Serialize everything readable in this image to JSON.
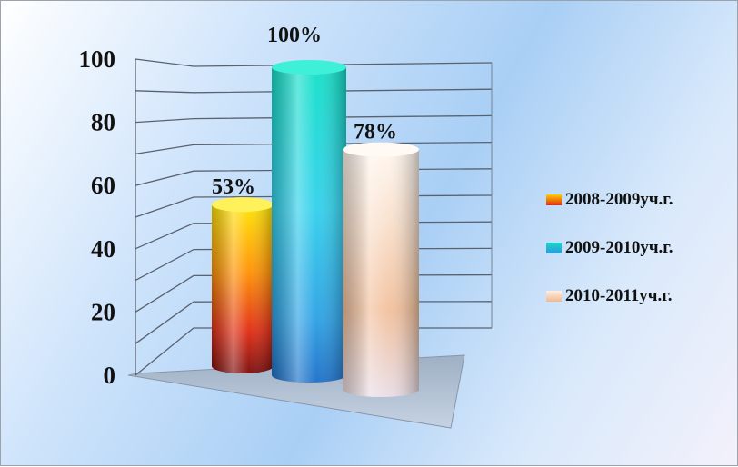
{
  "chart_data": {
    "type": "bar",
    "categories": [
      "2008-2009уч.г.",
      "2009-2010уч.г.",
      "2010-2011уч.г."
    ],
    "series": [
      {
        "values": [
          53,
          100,
          78
        ],
        "data_labels": [
          "53%",
          "100%",
          "78%"
        ]
      }
    ],
    "ylim": [
      0,
      100
    ],
    "yticks": [
      "0",
      "20",
      "40",
      "60",
      "80",
      "100"
    ],
    "grid": true,
    "three_d": true,
    "bar_shape": "cylinder",
    "legend": {
      "placement": "right",
      "items": [
        {
          "label": "2008-2009уч.г.",
          "color": "#e02a10"
        },
        {
          "label": "2009-2010уч.г.",
          "color": "#10b8d8"
        },
        {
          "label": "2010-2011уч.г.",
          "color": "#f3c3a0"
        }
      ]
    },
    "colors": {
      "bar1": [
        "#ffe400",
        "#ff8c00",
        "#e02a10",
        "#7a0808"
      ],
      "bar2": [
        "#10e0c8",
        "#28c8e8",
        "#2aa8e8",
        "#1a6ec8"
      ],
      "bar3": [
        "#fff4e8",
        "#f9dcc8",
        "#f3c3a0",
        "#e8d6e0"
      ]
    }
  }
}
